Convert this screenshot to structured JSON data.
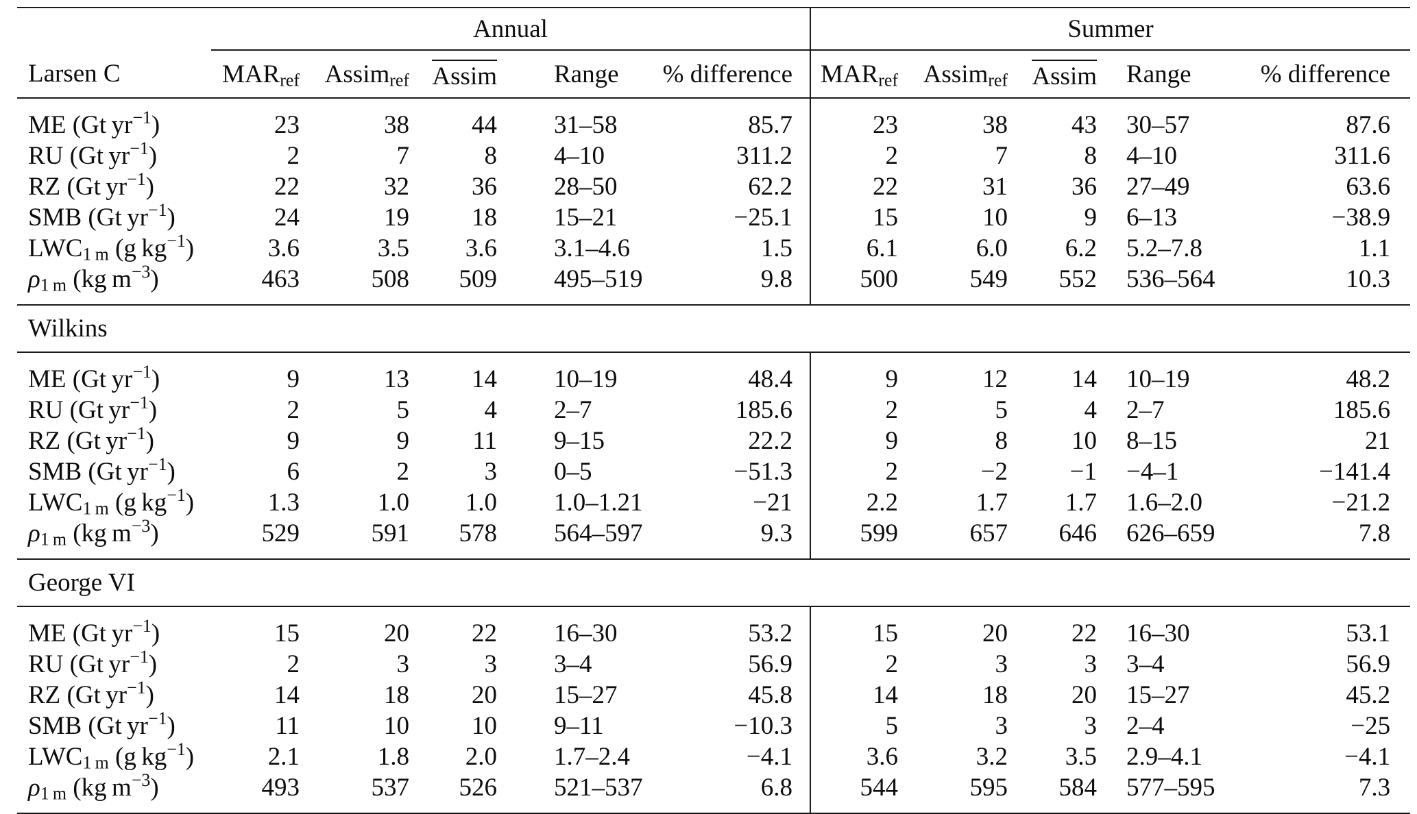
{
  "table": {
    "stub_header": "Larsen C",
    "group_headers": [
      {
        "label": "Annual"
      },
      {
        "label": "Summer"
      }
    ],
    "column_headers": [
      {
        "key": "marref",
        "text": "MAR",
        "sub": "ref"
      },
      {
        "key": "assimref",
        "text": "Assim",
        "sub": "ref"
      },
      {
        "key": "assim-mean",
        "text": "Assim",
        "overline": true
      },
      {
        "key": "range",
        "text": "Range"
      },
      {
        "key": "pct-difference",
        "text": "% difference"
      }
    ],
    "sections": [
      {
        "id": "larsen-c",
        "name": "Larsen C",
        "rows": [
          {
            "label": {
              "id": "me",
              "base": "ME",
              "italic": false,
              "sub": "",
              "unit_head": " (Gt yr",
              "unit_exp": "−1",
              "unit_tail": ")"
            },
            "annual": [
              "23",
              "38",
              "44",
              "31–58",
              "85.7"
            ],
            "summer": [
              "23",
              "38",
              "43",
              "30–57",
              "87.6"
            ]
          },
          {
            "label": {
              "id": "ru",
              "base": "RU",
              "italic": false,
              "sub": "",
              "unit_head": " (Gt yr",
              "unit_exp": "−1",
              "unit_tail": ")"
            },
            "annual": [
              "2",
              "7",
              "8",
              "4–10",
              "311.2"
            ],
            "summer": [
              "2",
              "7",
              "8",
              "4–10",
              "311.6"
            ]
          },
          {
            "label": {
              "id": "rz",
              "base": "RZ",
              "italic": false,
              "sub": "",
              "unit_head": " (Gt yr",
              "unit_exp": "−1",
              "unit_tail": ")"
            },
            "annual": [
              "22",
              "32",
              "36",
              "28–50",
              "62.2"
            ],
            "summer": [
              "22",
              "31",
              "36",
              "27–49",
              "63.6"
            ]
          },
          {
            "label": {
              "id": "smb",
              "base": "SMB",
              "italic": false,
              "sub": "",
              "unit_head": " (Gt yr",
              "unit_exp": "−1",
              "unit_tail": ")"
            },
            "annual": [
              "24",
              "19",
              "18",
              "15–21",
              "−25.1"
            ],
            "summer": [
              "15",
              "10",
              "9",
              "6–13",
              "−38.9"
            ]
          },
          {
            "label": {
              "id": "lwc",
              "base": "LWC",
              "italic": false,
              "sub": "1 m",
              "unit_head": " (g kg",
              "unit_exp": "−1",
              "unit_tail": ")"
            },
            "annual": [
              "3.6",
              "3.5",
              "3.6",
              "3.1–4.6",
              "1.5"
            ],
            "summer": [
              "6.1",
              "6.0",
              "6.2",
              "5.2–7.8",
              "1.1"
            ]
          },
          {
            "label": {
              "id": "rho",
              "base": "ρ",
              "italic": true,
              "sub": "1 m",
              "unit_head": " (kg m",
              "unit_exp": "−3",
              "unit_tail": ")"
            },
            "annual": [
              "463",
              "508",
              "509",
              "495–519",
              "9.8"
            ],
            "summer": [
              "500",
              "549",
              "552",
              "536–564",
              "10.3"
            ]
          }
        ]
      },
      {
        "id": "wilkins",
        "name": "Wilkins",
        "rows": [
          {
            "label": {
              "id": "me",
              "base": "ME",
              "italic": false,
              "sub": "",
              "unit_head": " (Gt yr",
              "unit_exp": "−1",
              "unit_tail": ")"
            },
            "annual": [
              "9",
              "13",
              "14",
              "10–19",
              "48.4"
            ],
            "summer": [
              "9",
              "12",
              "14",
              "10–19",
              "48.2"
            ]
          },
          {
            "label": {
              "id": "ru",
              "base": "RU",
              "italic": false,
              "sub": "",
              "unit_head": " (Gt yr",
              "unit_exp": "−1",
              "unit_tail": ")"
            },
            "annual": [
              "2",
              "5",
              "4",
              "2–7",
              "185.6"
            ],
            "summer": [
              "2",
              "5",
              "4",
              "2–7",
              "185.6"
            ]
          },
          {
            "label": {
              "id": "rz",
              "base": "RZ",
              "italic": false,
              "sub": "",
              "unit_head": " (Gt yr",
              "unit_exp": "−1",
              "unit_tail": ")"
            },
            "annual": [
              "9",
              "9",
              "11",
              "9–15",
              "22.2"
            ],
            "summer": [
              "9",
              "8",
              "10",
              "8–15",
              "21"
            ]
          },
          {
            "label": {
              "id": "smb",
              "base": "SMB",
              "italic": false,
              "sub": "",
              "unit_head": " (Gt yr",
              "unit_exp": "−1",
              "unit_tail": ")"
            },
            "annual": [
              "6",
              "2",
              "3",
              "0–5",
              "−51.3"
            ],
            "summer": [
              "2",
              "−2",
              "−1",
              "−4–1",
              "−141.4"
            ]
          },
          {
            "label": {
              "id": "lwc",
              "base": "LWC",
              "italic": false,
              "sub": "1 m",
              "unit_head": " (g kg",
              "unit_exp": "−1",
              "unit_tail": ")"
            },
            "annual": [
              "1.3",
              "1.0",
              "1.0",
              "1.0–1.21",
              "−21"
            ],
            "summer": [
              "2.2",
              "1.7",
              "1.7",
              "1.6–2.0",
              "−21.2"
            ]
          },
          {
            "label": {
              "id": "rho",
              "base": "ρ",
              "italic": true,
              "sub": "1 m",
              "unit_head": " (kg m",
              "unit_exp": "−3",
              "unit_tail": ")"
            },
            "annual": [
              "529",
              "591",
              "578",
              "564–597",
              "9.3"
            ],
            "summer": [
              "599",
              "657",
              "646",
              "626–659",
              "7.8"
            ]
          }
        ]
      },
      {
        "id": "george-vi",
        "name": "George VI",
        "rows": [
          {
            "label": {
              "id": "me",
              "base": "ME",
              "italic": false,
              "sub": "",
              "unit_head": " (Gt yr",
              "unit_exp": "−1",
              "unit_tail": ")"
            },
            "annual": [
              "15",
              "20",
              "22",
              "16–30",
              "53.2"
            ],
            "summer": [
              "15",
              "20",
              "22",
              "16–30",
              "53.1"
            ]
          },
          {
            "label": {
              "id": "ru",
              "base": "RU",
              "italic": false,
              "sub": "",
              "unit_head": " (Gt yr",
              "unit_exp": "−1",
              "unit_tail": ")"
            },
            "annual": [
              "2",
              "3",
              "3",
              "3–4",
              "56.9"
            ],
            "summer": [
              "2",
              "3",
              "3",
              "3–4",
              "56.9"
            ]
          },
          {
            "label": {
              "id": "rz",
              "base": "RZ",
              "italic": false,
              "sub": "",
              "unit_head": " (Gt yr",
              "unit_exp": "−1",
              "unit_tail": ")"
            },
            "annual": [
              "14",
              "18",
              "20",
              "15–27",
              "45.8"
            ],
            "summer": [
              "14",
              "18",
              "20",
              "15–27",
              "45.2"
            ]
          },
          {
            "label": {
              "id": "smb",
              "base": "SMB",
              "italic": false,
              "sub": "",
              "unit_head": " (Gt yr",
              "unit_exp": "−1",
              "unit_tail": ")"
            },
            "annual": [
              "11",
              "10",
              "10",
              "9–11",
              "−10.3"
            ],
            "summer": [
              "5",
              "3",
              "3",
              "2–4",
              "−25"
            ]
          },
          {
            "label": {
              "id": "lwc",
              "base": "LWC",
              "italic": false,
              "sub": "1 m",
              "unit_head": " (g kg",
              "unit_exp": "−1",
              "unit_tail": ")"
            },
            "annual": [
              "2.1",
              "1.8",
              "2.0",
              "1.7–2.4",
              "−4.1"
            ],
            "summer": [
              "3.6",
              "3.2",
              "3.5",
              "2.9–4.1",
              "−4.1"
            ]
          },
          {
            "label": {
              "id": "rho",
              "base": "ρ",
              "italic": true,
              "sub": "1 m",
              "unit_head": " (kg m",
              "unit_exp": "−3",
              "unit_tail": ")"
            },
            "annual": [
              "493",
              "537",
              "526",
              "521–537",
              "6.8"
            ],
            "summer": [
              "544",
              "595",
              "584",
              "577–595",
              "7.3"
            ]
          }
        ]
      }
    ]
  }
}
